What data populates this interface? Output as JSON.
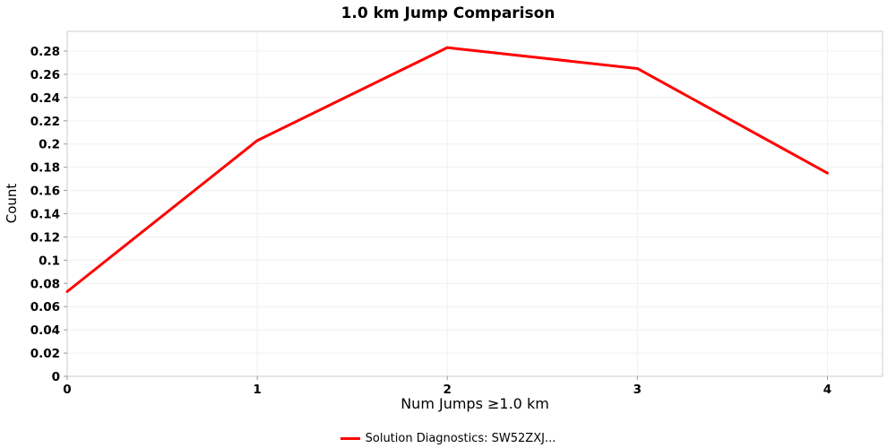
{
  "chart_data": {
    "type": "line",
    "title": "1.0 km Jump Comparison",
    "xlabel": "Num Jumps ≥1.0 km",
    "ylabel": "Count",
    "x": [
      0,
      1,
      2,
      3,
      4
    ],
    "series": [
      {
        "name": "Solution Diagnostics: SW52ZXJ...",
        "color": "#ff0000",
        "values": [
          0.073,
          0.203,
          0.283,
          0.265,
          0.175
        ]
      }
    ],
    "xlim": [
      0,
      4.29
    ],
    "ylim": [
      0,
      0.297
    ],
    "x_ticks": [
      0,
      1,
      2,
      3,
      4
    ],
    "x_tick_labels": [
      "0",
      "1",
      "2",
      "3",
      "4"
    ],
    "y_ticks": [
      0,
      0.02,
      0.04,
      0.06,
      0.08,
      0.1,
      0.12,
      0.14,
      0.16,
      0.18,
      0.2,
      0.22,
      0.24,
      0.26,
      0.28
    ],
    "y_tick_labels": [
      "0",
      "0.02",
      "0.04",
      "0.06",
      "0.08",
      "0.1",
      "0.12",
      "0.14",
      "0.16",
      "0.18",
      "0.2",
      "0.22",
      "0.24",
      "0.26",
      "0.28"
    ],
    "grid": true,
    "legend_position": "bottom",
    "colors": {
      "grid": "#f0f0f0",
      "border": "#cccccc",
      "tick": "#999999"
    }
  }
}
